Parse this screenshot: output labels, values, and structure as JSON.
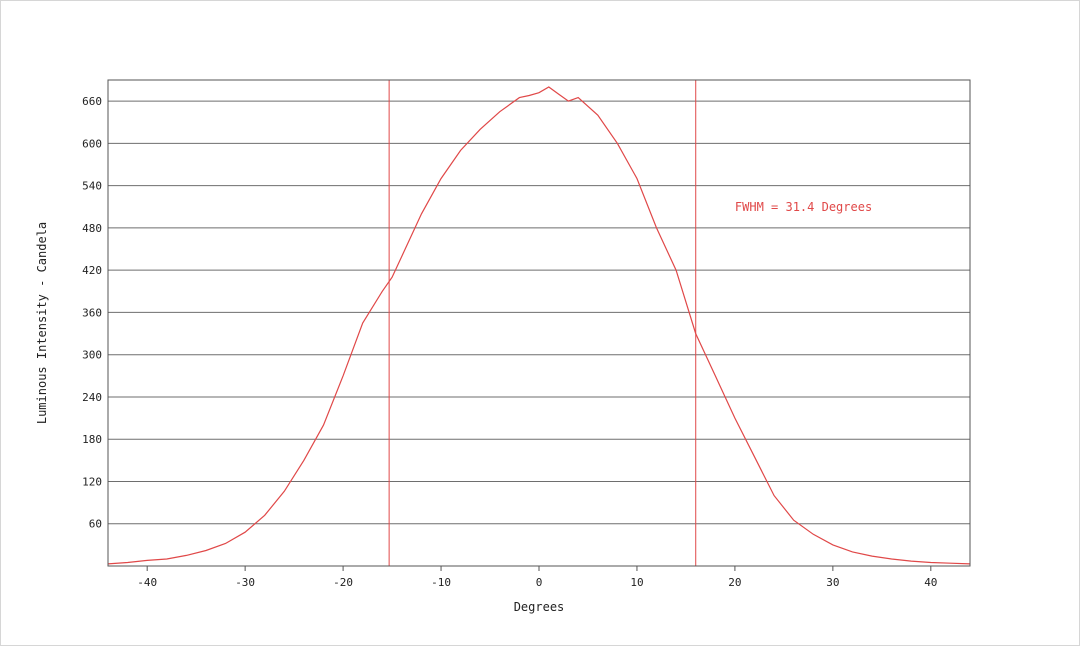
{
  "chart_data": {
    "type": "line",
    "xlabel": "Degrees",
    "ylabel": "Luminous Intensity - Candela",
    "xlim": [
      -44,
      44
    ],
    "ylim": [
      0,
      690
    ],
    "xticks": [
      -40,
      -30,
      -20,
      -10,
      0,
      10,
      20,
      30,
      40
    ],
    "yticks": [
      60,
      120,
      180,
      240,
      300,
      360,
      420,
      480,
      540,
      600,
      660
    ],
    "ytick_labels": [
      "60",
      "120",
      "180",
      "240",
      "300",
      "360",
      "420",
      "480",
      "540",
      "600",
      "660"
    ],
    "grid": "horizontal",
    "annotation": "FWHM = 31.4 Degrees",
    "fwhm_markers": [
      -15.3,
      16.0
    ],
    "colors": {
      "curve": "#e04848",
      "grid": "#6e6e6e",
      "frame": "#555555"
    },
    "series": [
      {
        "x": [
          -44,
          -42,
          -40,
          -38,
          -36,
          -34,
          -32,
          -30,
          -28,
          -26,
          -24,
          -22,
          -20,
          -18,
          -16,
          -15,
          -14,
          -12,
          -10,
          -8,
          -6,
          -4,
          -2,
          -1,
          0,
          1,
          2,
          3,
          4,
          6,
          8,
          10,
          12,
          14,
          16,
          18,
          20,
          22,
          24,
          26,
          28,
          30,
          32,
          34,
          36,
          38,
          40,
          42,
          44
        ],
        "y": [
          3,
          5,
          8,
          10,
          15,
          22,
          32,
          48,
          72,
          106,
          150,
          200,
          270,
          345,
          390,
          410,
          440,
          500,
          550,
          590,
          620,
          645,
          665,
          668,
          672,
          680,
          670,
          660,
          665,
          640,
          600,
          550,
          480,
          420,
          330,
          270,
          210,
          155,
          100,
          65,
          45,
          30,
          20,
          14,
          10,
          7,
          5,
          4,
          3
        ]
      }
    ]
  }
}
